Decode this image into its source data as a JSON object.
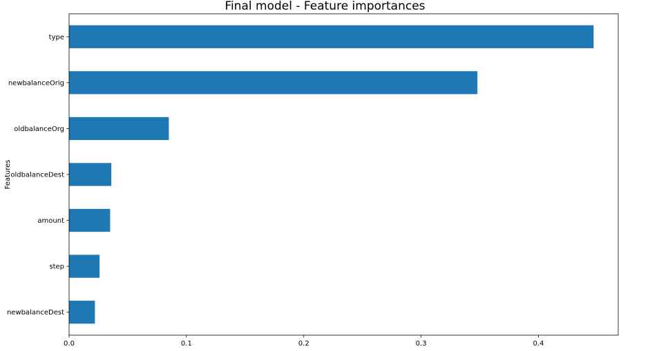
{
  "chart_data": {
    "type": "bar",
    "orientation": "horizontal",
    "title": "Final model - Feature importances",
    "xlabel": "",
    "ylabel": "Features",
    "categories": [
      "type",
      "newbalanceOrig",
      "oldbalanceOrg",
      "oldbalanceDest",
      "amount",
      "step",
      "newbalanceDest"
    ],
    "values": [
      0.447,
      0.348,
      0.085,
      0.036,
      0.035,
      0.026,
      0.022
    ],
    "xlim": [
      0,
      0.468
    ],
    "xticks": [
      0.0,
      0.1,
      0.2,
      0.3,
      0.4
    ],
    "xtick_labels": [
      "0.0",
      "0.1",
      "0.2",
      "0.3",
      "0.4"
    ],
    "grid": false,
    "bar_color": "#1f77b4"
  }
}
